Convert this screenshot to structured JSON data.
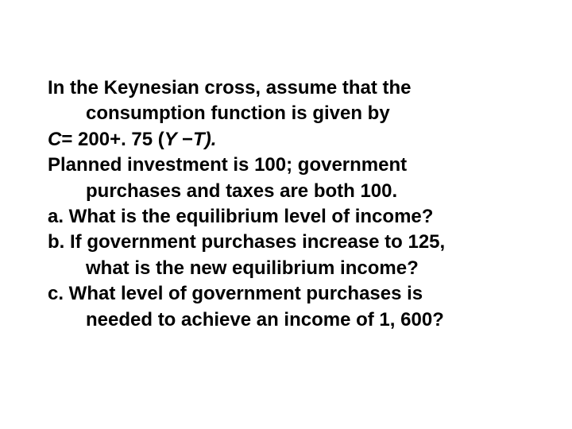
{
  "slide": {
    "background_color": "#ffffff",
    "text_color": "#000000",
    "font_size": 24,
    "font_weight": "bold",
    "lines": {
      "l1": "In the Keynesian cross, assume that the",
      "l2": "consumption function is given by",
      "l3_prefix": "C",
      "l3_mid": "= 200+. 75 (",
      "l3_y": "Y ",
      "l3_minus": "−",
      "l3_t": "T).",
      "l4": "Planned investment is 100; government",
      "l5": "purchases and taxes are both 100.",
      "l6": "a. What is the equilibrium level of income?",
      "l7": "b. If government purchases increase to 125,",
      "l8": "what is the new equilibrium income?",
      "l9": "c. What level of government purchases is",
      "l10": "needed to achieve an income of 1, 600?"
    }
  }
}
